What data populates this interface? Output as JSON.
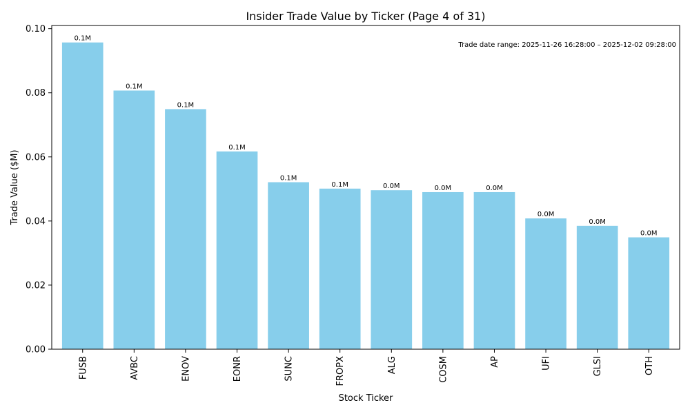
{
  "chart_data": {
    "type": "bar",
    "title": "Insider Trade Value by Ticker (Page 4 of 31)",
    "xlabel": "Stock Ticker",
    "ylabel": "Trade Value ($M)",
    "ylim": [
      0,
      0.101
    ],
    "yticks": [
      0.0,
      0.02,
      0.04,
      0.06,
      0.08,
      0.1
    ],
    "ytick_labels": [
      "0.00",
      "0.02",
      "0.04",
      "0.06",
      "0.08",
      "0.10"
    ],
    "categories": [
      "FUSB",
      "AVBC",
      "ENOV",
      "EONR",
      "SUNC",
      "FROPX",
      "ALG",
      "COSM",
      "AP",
      "UFI",
      "GLSI",
      "OTH"
    ],
    "values": [
      0.0957,
      0.0807,
      0.0749,
      0.0617,
      0.0521,
      0.0501,
      0.0496,
      0.049,
      0.049,
      0.0408,
      0.0385,
      0.0349
    ],
    "value_labels": [
      "0.1M",
      "0.1M",
      "0.1M",
      "0.1M",
      "0.1M",
      "0.1M",
      "0.0M",
      "0.0M",
      "0.0M",
      "0.0M",
      "0.0M",
      "0.0M"
    ],
    "bar_color": "#87CEEB",
    "annotation": "Trade date range: 2025-11-26 16:28:00 – 2025-12-02 09:28:00",
    "grid": false
  }
}
